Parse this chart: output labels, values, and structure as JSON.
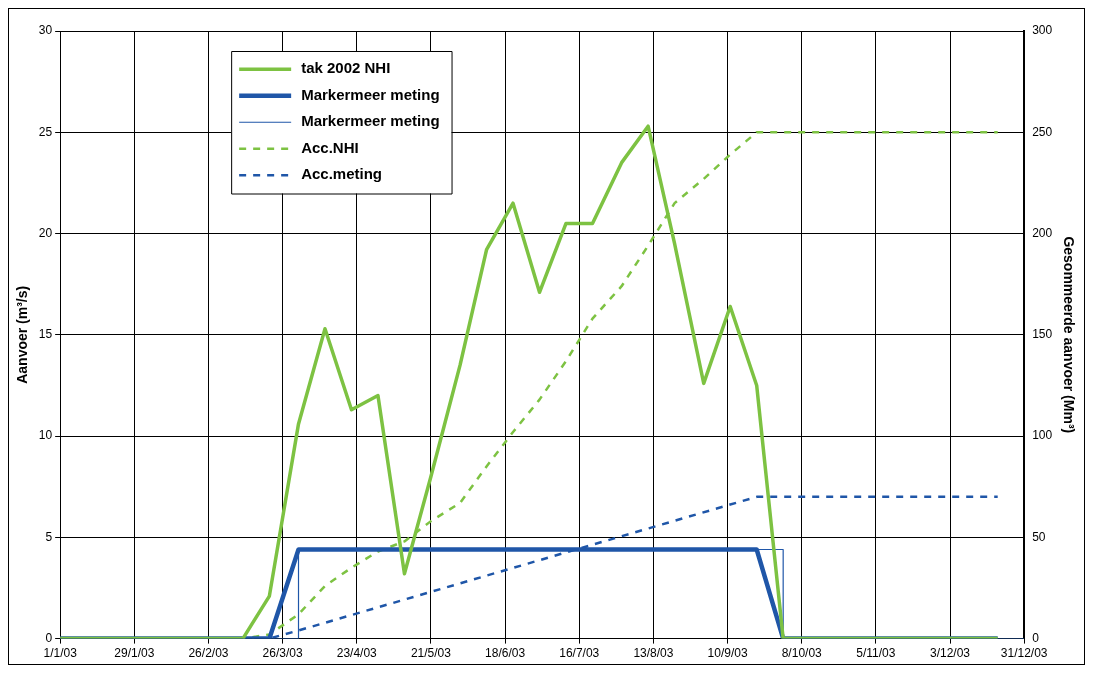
{
  "chart_data": {
    "type": "line",
    "ylabel": "Aanvoer (m³/s)",
    "y2label": "Gesommeerde aanvoer (Mm³)",
    "xlim": [
      "2003-01-01",
      "2003-12-31"
    ],
    "xticks": [
      {
        "value": "2003-01-01",
        "label": "1/1/03"
      },
      {
        "value": "2003-01-29",
        "label": "29/1/03"
      },
      {
        "value": "2003-02-26",
        "label": "26/2/03"
      },
      {
        "value": "2003-03-26",
        "label": "26/3/03"
      },
      {
        "value": "2003-04-23",
        "label": "23/4/03"
      },
      {
        "value": "2003-05-21",
        "label": "21/5/03"
      },
      {
        "value": "2003-06-18",
        "label": "18/6/03"
      },
      {
        "value": "2003-07-16",
        "label": "16/7/03"
      },
      {
        "value": "2003-08-13",
        "label": "13/8/03"
      },
      {
        "value": "2003-09-10",
        "label": "10/9/03"
      },
      {
        "value": "2003-10-08",
        "label": "8/10/03"
      },
      {
        "value": "2003-11-05",
        "label": "5/11/03"
      },
      {
        "value": "2003-12-03",
        "label": "3/12/03"
      },
      {
        "value": "2003-12-31",
        "label": "31/12/03"
      }
    ],
    "ylim": [
      0,
      30
    ],
    "yticks": [
      0,
      5,
      10,
      15,
      20,
      25,
      30
    ],
    "y2lim": [
      0,
      300
    ],
    "y2ticks": [
      0,
      50,
      100,
      150,
      200,
      250,
      300
    ],
    "grid": true,
    "legend": "top left",
    "marker": "none",
    "series": [
      {
        "name": "tak 2002 NHI",
        "color": "#7dc242",
        "line_style": "solid",
        "x": [
          "2003-01-01",
          "2003-03-11",
          "2003-03-21",
          "2003-04-01",
          "2003-04-11",
          "2003-04-21",
          "2003-05-01",
          "2003-05-11",
          "2003-05-21",
          "2003-06-01",
          "2003-06-11",
          "2003-06-21",
          "2003-07-01",
          "2003-07-11",
          "2003-07-21",
          "2003-08-01",
          "2003-08-11",
          "2003-08-21",
          "2003-09-01",
          "2003-09-11",
          "2003-09-21",
          "2003-10-01",
          "2003-12-21"
        ],
        "values": [
          0,
          0,
          2.1,
          10.6,
          15.3,
          11.3,
          12.0,
          3.2,
          8.0,
          13.5,
          19.2,
          21.5,
          17.1,
          20.5,
          20.5,
          23.5,
          25.3,
          19.5,
          12.6,
          16.4,
          12.5,
          0,
          0
        ]
      },
      {
        "name": "Markermeer meting",
        "color": "#1f56a8",
        "line_style": "solid",
        "x": [
          "2003-01-01",
          "2003-03-21",
          "2003-04-01",
          "2003-09-21",
          "2003-10-01",
          "2003-12-21"
        ],
        "values": [
          0,
          0,
          4.4,
          4.4,
          0,
          0
        ]
      },
      {
        "name": "Markermeer meting",
        "color": "#1f56a8",
        "line_style": "solid",
        "x": [
          "2003-01-01",
          "2003-04-01",
          "2003-04-01",
          "2003-10-01",
          "2003-10-01",
          "2003-12-31"
        ],
        "values": [
          0,
          0,
          4.4,
          4.4,
          0,
          0
        ]
      },
      {
        "name": "Acc.NHI",
        "color": "#7dc242",
        "line_style": "dashed",
        "axis": "y2",
        "x": [
          "2003-03-11",
          "2003-03-21",
          "2003-04-01",
          "2003-04-11",
          "2003-04-21",
          "2003-05-01",
          "2003-05-11",
          "2003-05-21",
          "2003-06-01",
          "2003-06-11",
          "2003-06-21",
          "2003-07-01",
          "2003-07-11",
          "2003-07-21",
          "2003-08-01",
          "2003-08-11",
          "2003-08-21",
          "2003-09-01",
          "2003-09-11",
          "2003-09-21",
          "2003-12-21"
        ],
        "values": [
          0,
          2,
          12,
          26,
          35,
          43,
          48,
          58,
          67,
          85,
          102,
          118,
          137,
          158,
          174,
          194,
          215,
          227,
          239,
          250,
          250
        ]
      },
      {
        "name": "Acc.meting",
        "color": "#1f56a8",
        "line_style": "dashed",
        "axis": "y2",
        "x": [
          "2003-03-21",
          "2003-04-01",
          "2003-09-21",
          "2003-12-21"
        ],
        "values": [
          0,
          4,
          70,
          70
        ]
      }
    ]
  }
}
